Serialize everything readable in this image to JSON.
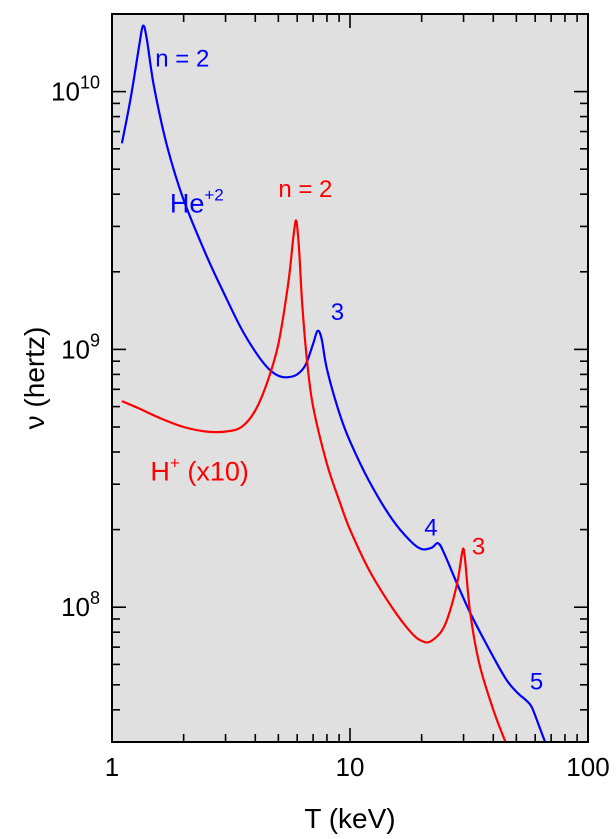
{
  "chart_data": {
    "type": "line",
    "xlabel": "T (keV)",
    "ylabel": "ν (hertz)",
    "xscale": "log",
    "yscale": "log",
    "xlim": [
      1,
      100
    ],
    "ylim": [
      30000000,
      20000000000
    ],
    "grid": false,
    "background_color": "#e0e0e0",
    "x_ticks": [
      {
        "value": 1,
        "label": "1"
      },
      {
        "value": 10,
        "label": "10"
      },
      {
        "value": 100,
        "label": "100"
      }
    ],
    "y_ticks": [
      {
        "value": 100000000,
        "base": "10",
        "exp": "8"
      },
      {
        "value": 1000000000,
        "base": "10",
        "exp": "9"
      },
      {
        "value": 10000000000,
        "base": "10",
        "exp": "10"
      }
    ],
    "series": [
      {
        "label_main": "He",
        "label_sup": "+2",
        "color": "#0000ff",
        "points": [
          [
            1.1,
            6300000000.0
          ],
          [
            1.2,
            9500000000.0
          ],
          [
            1.3,
            15000000000.0
          ],
          [
            1.35,
            18000000000.0
          ],
          [
            1.4,
            16000000000.0
          ],
          [
            1.5,
            10500000000.0
          ],
          [
            1.7,
            6200000000.0
          ],
          [
            2.0,
            3800000000.0
          ],
          [
            2.5,
            2300000000.0
          ],
          [
            3.0,
            1600000000.0
          ],
          [
            3.5,
            1200000000.0
          ],
          [
            4.0,
            980000000.0
          ],
          [
            4.5,
            850000000.0
          ],
          [
            5.0,
            790000000.0
          ],
          [
            5.5,
            780000000.0
          ],
          [
            6.0,
            800000000.0
          ],
          [
            6.5,
            870000000.0
          ],
          [
            7.0,
            1050000000.0
          ],
          [
            7.3,
            1180000000.0
          ],
          [
            7.6,
            1100000000.0
          ],
          [
            8.0,
            840000000.0
          ],
          [
            9.0,
            570000000.0
          ],
          [
            10.0,
            440000000.0
          ],
          [
            12.0,
            310000000.0
          ],
          [
            15.0,
            220000000.0
          ],
          [
            18.0,
            180000000.0
          ],
          [
            20.0,
            168000000.0
          ],
          [
            22.0,
            170000000.0
          ],
          [
            23.5,
            177000000.0
          ],
          [
            25.0,
            160000000.0
          ],
          [
            28.0,
            125000000.0
          ],
          [
            32.0,
            95000000.0
          ],
          [
            38.0,
            70000000.0
          ],
          [
            45.0,
            53000000.0
          ],
          [
            50.0,
            47000000.0
          ],
          [
            55.0,
            43500000.0
          ],
          [
            58.0,
            41000000.0
          ],
          [
            62.0,
            35000000.0
          ],
          [
            66.0,
            30000000.0
          ]
        ]
      },
      {
        "label_main": "H",
        "label_sup": "+",
        "label_suffix": " (x10)",
        "color": "#ff0000",
        "points": [
          [
            1.1,
            630000000.0
          ],
          [
            1.3,
            590000000.0
          ],
          [
            1.6,
            540000000.0
          ],
          [
            2.0,
            500000000.0
          ],
          [
            2.5,
            480000000.0
          ],
          [
            3.0,
            480000000.0
          ],
          [
            3.5,
            500000000.0
          ],
          [
            4.0,
            580000000.0
          ],
          [
            4.5,
            750000000.0
          ],
          [
            5.0,
            1050000000.0
          ],
          [
            5.5,
            1800000000.0
          ],
          [
            5.8,
            2800000000.0
          ],
          [
            5.95,
            3150000000.0
          ],
          [
            6.1,
            2500000000.0
          ],
          [
            6.3,
            1500000000.0
          ],
          [
            6.6,
            900000000.0
          ],
          [
            7.0,
            600000000.0
          ],
          [
            8.0,
            360000000.0
          ],
          [
            9.0,
            260000000.0
          ],
          [
            10.0,
            200000000.0
          ],
          [
            12.0,
            140000000.0
          ],
          [
            15.0,
            100000000.0
          ],
          [
            18.0,
            80000000.0
          ],
          [
            20.0,
            74000000.0
          ],
          [
            22.0,
            74000000.0
          ],
          [
            25.0,
            85000000.0
          ],
          [
            28.0,
            120000000.0
          ],
          [
            29.5,
            160000000.0
          ],
          [
            30.0,
            168000000.0
          ],
          [
            30.5,
            150000000.0
          ],
          [
            32.0,
            95000000.0
          ],
          [
            35.0,
            60000000.0
          ],
          [
            40.0,
            40000000.0
          ],
          [
            45.0,
            30000000.0
          ]
        ]
      }
    ],
    "annotations": [
      {
        "text": "n = 2",
        "x": 1.52,
        "y": 12500000000.0,
        "color": "#0000ff"
      },
      {
        "text": "3",
        "x": 8.3,
        "y": 1300000000.0,
        "color": "#0000ff"
      },
      {
        "text": "4",
        "x": 20.5,
        "y": 190000000.0,
        "color": "#0000ff"
      },
      {
        "text": "5",
        "x": 57.0,
        "y": 48000000.0,
        "color": "#0000ff"
      },
      {
        "text": "n = 2",
        "x": 5.0,
        "y": 3900000000.0,
        "color": "#ff0000"
      },
      {
        "text": "3",
        "x": 32.5,
        "y": 160000000.0,
        "color": "#ff0000"
      }
    ]
  }
}
